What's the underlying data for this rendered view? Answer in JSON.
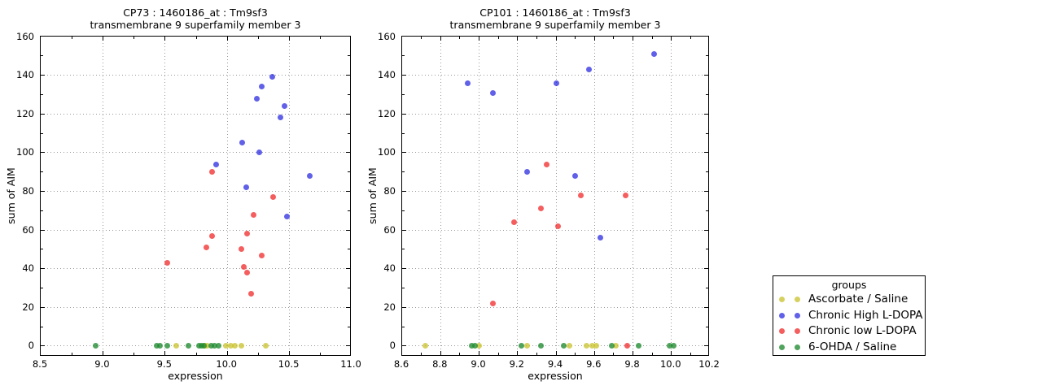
{
  "chart_data": [
    {
      "type": "scatter",
      "title_line1": "CP73 : 1460186_at : Tm9sf3",
      "title_line2": "transmembrane 9 superfamily member 3",
      "xlabel": "expression",
      "ylabel": "sum of AIM",
      "xlim": [
        8.5,
        11.0
      ],
      "ylim": [
        0,
        160
      ],
      "xticks": [
        8.5,
        9.0,
        9.5,
        10.0,
        10.5,
        11.0
      ],
      "yticks": [
        0,
        20,
        40,
        60,
        80,
        100,
        120,
        140,
        160
      ],
      "grid": "dotted",
      "legend_position": "outside-right",
      "series": [
        {
          "name": "Ascorbate / Saline",
          "color": "#c8c22a",
          "opacity": 0.75,
          "points": [
            [
              9.59,
              0
            ],
            [
              9.82,
              0
            ],
            [
              9.84,
              0
            ],
            [
              9.99,
              0
            ],
            [
              10.03,
              0
            ],
            [
              10.06,
              0
            ],
            [
              10.11,
              0
            ],
            [
              10.31,
              0
            ]
          ]
        },
        {
          "name": "Chronic High L-DOPA",
          "color": "#1515dd",
          "opacity": 0.68,
          "points": [
            [
              9.91,
              94
            ],
            [
              10.12,
              105
            ],
            [
              10.15,
              82
            ],
            [
              10.24,
              128
            ],
            [
              10.26,
              100
            ],
            [
              10.28,
              134
            ],
            [
              10.36,
              139
            ],
            [
              10.43,
              118
            ],
            [
              10.46,
              124
            ],
            [
              10.48,
              67
            ],
            [
              10.66,
              88
            ]
          ]
        },
        {
          "name": "Chronic low L-DOPA",
          "color": "#f02020",
          "opacity": 0.72,
          "points": [
            [
              9.52,
              43
            ],
            [
              9.83,
              51
            ],
            [
              9.88,
              57
            ],
            [
              9.88,
              90
            ],
            [
              10.11,
              50
            ],
            [
              10.13,
              41
            ],
            [
              10.16,
              58
            ],
            [
              10.16,
              38
            ],
            [
              10.19,
              27
            ],
            [
              10.21,
              68
            ],
            [
              10.28,
              47
            ],
            [
              10.37,
              77
            ]
          ]
        },
        {
          "name": "6-OHDA / Saline",
          "color": "#208a30",
          "opacity": 0.78,
          "points": [
            [
              8.94,
              0
            ],
            [
              9.43,
              0
            ],
            [
              9.46,
              0
            ],
            [
              9.52,
              0
            ],
            [
              9.69,
              0
            ],
            [
              9.77,
              0
            ],
            [
              9.79,
              0
            ],
            [
              9.81,
              0
            ],
            [
              9.87,
              0
            ],
            [
              9.9,
              0
            ],
            [
              9.93,
              0
            ]
          ]
        }
      ]
    },
    {
      "type": "scatter",
      "title_line1": "CP101 : 1460186_at : Tm9sf3",
      "title_line2": "transmembrane 9 superfamily member 3",
      "xlabel": "expression",
      "ylabel": "sum of AIM",
      "xlim": [
        8.6,
        10.2
      ],
      "ylim": [
        0,
        160
      ],
      "xticks": [
        8.6,
        8.8,
        9.0,
        9.2,
        9.4,
        9.6,
        9.8,
        10.0,
        10.2
      ],
      "yticks": [
        0,
        20,
        40,
        60,
        80,
        100,
        120,
        140,
        160
      ],
      "grid": "dotted",
      "legend_position": "outside-right",
      "series": [
        {
          "name": "Ascorbate / Saline",
          "color": "#c8c22a",
          "opacity": 0.75,
          "points": [
            [
              8.72,
              0
            ],
            [
              9.0,
              0
            ],
            [
              9.25,
              0
            ],
            [
              9.47,
              0
            ],
            [
              9.56,
              0
            ],
            [
              9.59,
              0
            ],
            [
              9.61,
              0
            ],
            [
              9.71,
              0
            ]
          ]
        },
        {
          "name": "Chronic High L-DOPA",
          "color": "#1515dd",
          "opacity": 0.68,
          "points": [
            [
              8.94,
              136
            ],
            [
              9.07,
              131
            ],
            [
              9.25,
              90
            ],
            [
              9.4,
              136
            ],
            [
              9.5,
              88
            ],
            [
              9.57,
              143
            ],
            [
              9.63,
              56
            ],
            [
              9.91,
              151
            ]
          ]
        },
        {
          "name": "Chronic low L-DOPA",
          "color": "#f02020",
          "opacity": 0.72,
          "points": [
            [
              9.07,
              22
            ],
            [
              9.18,
              64
            ],
            [
              9.32,
              71
            ],
            [
              9.35,
              94
            ],
            [
              9.41,
              62
            ],
            [
              9.53,
              78
            ],
            [
              9.76,
              78
            ],
            [
              9.77,
              0
            ]
          ]
        },
        {
          "name": "6-OHDA / Saline",
          "color": "#208a30",
          "opacity": 0.78,
          "points": [
            [
              8.96,
              0
            ],
            [
              8.98,
              0
            ],
            [
              9.22,
              0
            ],
            [
              9.32,
              0
            ],
            [
              9.44,
              0
            ],
            [
              9.69,
              0
            ],
            [
              9.83,
              0
            ],
            [
              9.99,
              0
            ],
            [
              10.01,
              0
            ]
          ]
        }
      ]
    }
  ],
  "legend": {
    "title": "groups",
    "entries": [
      {
        "label": "Ascorbate / Saline",
        "color": "#c8c22a",
        "opacity": 0.75
      },
      {
        "label": "Chronic High L-DOPA",
        "color": "#1515dd",
        "opacity": 0.68
      },
      {
        "label": "Chronic low L-DOPA",
        "color": "#f02020",
        "opacity": 0.72
      },
      {
        "label": "6-OHDA / Saline",
        "color": "#208a30",
        "opacity": 0.78
      }
    ]
  }
}
